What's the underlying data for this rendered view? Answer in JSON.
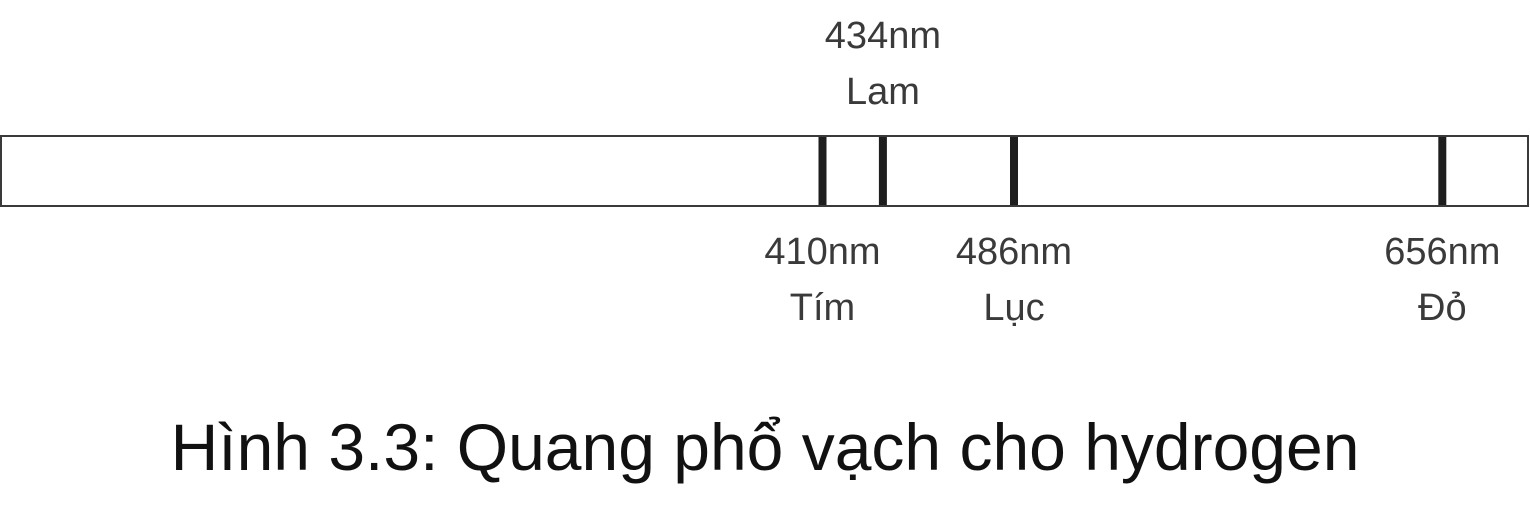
{
  "spectrum": {
    "range_nm": [
      84,
      690
    ],
    "bar_color": "#ffffff",
    "line_color": "#1e1e1e",
    "lines": [
      {
        "wavelength_nm": 410,
        "label_value": "410nm",
        "label_color": "Tím",
        "label_side": "below"
      },
      {
        "wavelength_nm": 434,
        "label_value": "434nm",
        "label_color": "Lam",
        "label_side": "above"
      },
      {
        "wavelength_nm": 486,
        "label_value": "486nm",
        "label_color": "Lục",
        "label_side": "below"
      },
      {
        "wavelength_nm": 656,
        "label_value": "656nm",
        "label_color": "Đỏ",
        "label_side": "below"
      }
    ]
  },
  "caption": "Hình 3.3: Quang phổ vạch cho hydrogen"
}
